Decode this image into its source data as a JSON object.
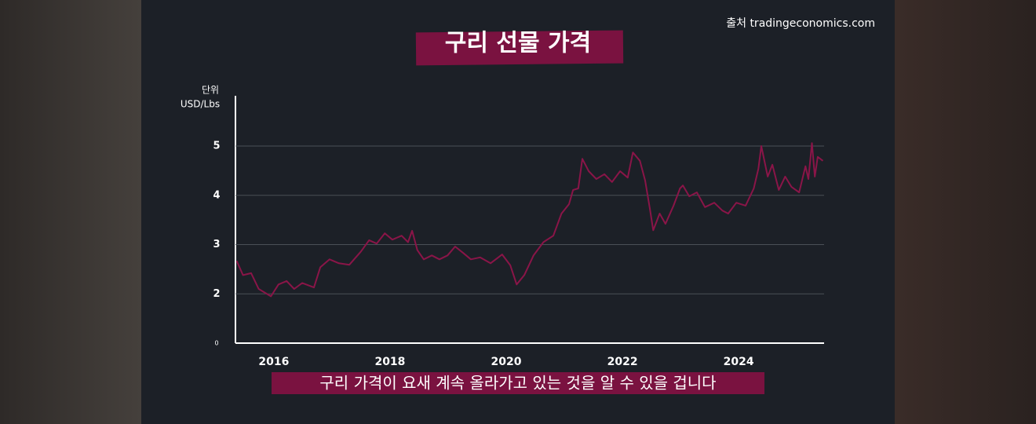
{
  "chart_data": {
    "type": "line",
    "title": "구리 선물 가격",
    "source": "출처 tradingeconomics.com",
    "y_axis_label": "단위",
    "y_axis_unit": "USD/Lbs",
    "y_origin_label": "0",
    "caption": "구리 가격이 요새 계속 올라가고 있는 것을 알 수 있을 겁니다",
    "color": "#8a1548",
    "x": [
      2015.36,
      2015.47,
      2015.61,
      2015.74,
      2015.95,
      2016.08,
      2016.22,
      2016.35,
      2016.49,
      2016.69,
      2016.8,
      2016.96,
      2017.12,
      2017.3,
      2017.5,
      2017.64,
      2017.77,
      2017.91,
      2018.04,
      2018.2,
      2018.31,
      2018.38,
      2018.47,
      2018.58,
      2018.72,
      2018.85,
      2018.99,
      2019.12,
      2019.26,
      2019.39,
      2019.55,
      2019.73,
      2019.93,
      2020.07,
      2020.18,
      2020.31,
      2020.47,
      2020.64,
      2020.81,
      2020.95,
      2021.08,
      2021.15,
      2021.24,
      2021.31,
      2021.42,
      2021.55,
      2021.69,
      2021.82,
      2021.96,
      2022.09,
      2022.18,
      2022.3,
      2022.39,
      2022.47,
      2022.53,
      2022.64,
      2022.74,
      2022.88,
      2022.99,
      2023.04,
      2023.15,
      2023.28,
      2023.42,
      2023.58,
      2023.72,
      2023.82,
      2023.96,
      2024.12,
      2024.26,
      2024.34,
      2024.39,
      2024.5,
      2024.58,
      2024.69,
      2024.8,
      2024.91,
      2025.04,
      2025.15,
      2025.2,
      2025.26,
      2025.31,
      2025.36,
      2025.45
    ],
    "values": [
      2.67,
      2.38,
      2.42,
      2.1,
      1.95,
      2.19,
      2.26,
      2.1,
      2.22,
      2.13,
      2.54,
      2.7,
      2.62,
      2.59,
      2.86,
      3.09,
      3.02,
      3.23,
      3.1,
      3.18,
      3.05,
      3.28,
      2.89,
      2.7,
      2.78,
      2.7,
      2.78,
      2.96,
      2.83,
      2.7,
      2.74,
      2.62,
      2.8,
      2.58,
      2.19,
      2.38,
      2.78,
      3.05,
      3.18,
      3.63,
      3.82,
      4.11,
      4.14,
      4.74,
      4.49,
      4.33,
      4.43,
      4.27,
      4.49,
      4.36,
      4.87,
      4.7,
      4.3,
      3.74,
      3.29,
      3.63,
      3.42,
      3.79,
      4.14,
      4.2,
      3.98,
      4.06,
      3.76,
      3.85,
      3.69,
      3.63,
      3.85,
      3.79,
      4.14,
      4.54,
      5.0,
      4.38,
      4.62,
      4.11,
      4.38,
      4.17,
      4.06,
      4.59,
      4.33,
      5.06,
      4.38,
      4.78,
      4.7
    ],
    "xlim": [
      2015.34,
      2025.47
    ],
    "xticks": [
      2016,
      2018,
      2020,
      2022,
      2024
    ],
    "ylim": [
      1,
      6.02
    ],
    "yticks": [
      2,
      3,
      4,
      5
    ],
    "grid": true
  }
}
